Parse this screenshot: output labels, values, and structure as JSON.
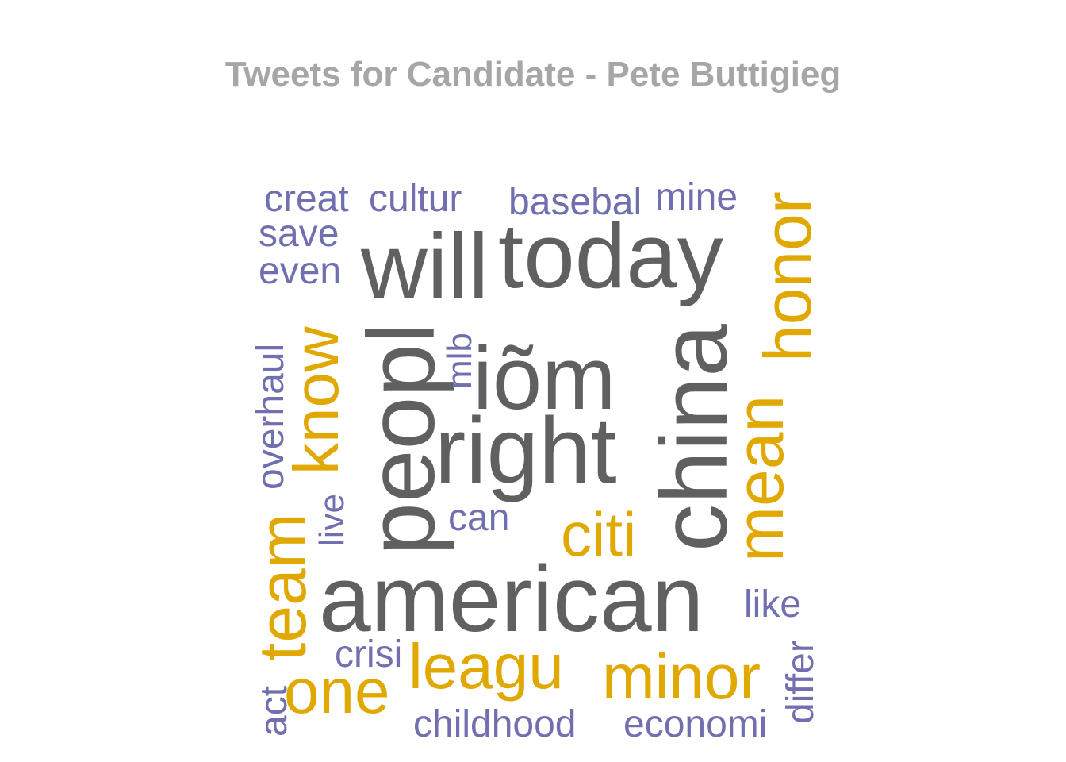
{
  "title": "Tweets for Candidate - Pete Buttigieg",
  "colors": {
    "high": "#606060",
    "mid": "#e0a800",
    "low": "#7070b0",
    "title": "#a6a6a6"
  },
  "chart_data": {
    "type": "wordcloud",
    "title": "Tweets for Candidate - Pete Buttigieg",
    "words": [
      {
        "word": "will",
        "group": "high",
        "weight": 120,
        "rotated": false
      },
      {
        "word": "today",
        "group": "high",
        "weight": 120,
        "rotated": false
      },
      {
        "word": "peopl",
        "group": "high",
        "weight": 120,
        "rotated": true
      },
      {
        "word": "iõm",
        "group": "high",
        "weight": 110,
        "rotated": false
      },
      {
        "word": "right",
        "group": "high",
        "weight": 120,
        "rotated": false
      },
      {
        "word": "china",
        "group": "high",
        "weight": 120,
        "rotated": true
      },
      {
        "word": "american",
        "group": "high",
        "weight": 120,
        "rotated": false
      },
      {
        "word": "honor",
        "group": "mid",
        "weight": 85,
        "rotated": true
      },
      {
        "word": "know",
        "group": "mid",
        "weight": 80,
        "rotated": true
      },
      {
        "word": "mean",
        "group": "mid",
        "weight": 85,
        "rotated": true
      },
      {
        "word": "team",
        "group": "mid",
        "weight": 85,
        "rotated": true
      },
      {
        "word": "citi",
        "group": "mid",
        "weight": 75,
        "rotated": false
      },
      {
        "word": "leagu",
        "group": "mid",
        "weight": 80,
        "rotated": false
      },
      {
        "word": "minor",
        "group": "mid",
        "weight": 80,
        "rotated": false
      },
      {
        "word": "one",
        "group": "mid",
        "weight": 80,
        "rotated": false
      },
      {
        "word": "creat",
        "group": "low",
        "weight": 50,
        "rotated": false
      },
      {
        "word": "cultur",
        "group": "low",
        "weight": 50,
        "rotated": false
      },
      {
        "word": "basebal",
        "group": "low",
        "weight": 50,
        "rotated": false
      },
      {
        "word": "mine",
        "group": "low",
        "weight": 50,
        "rotated": false
      },
      {
        "word": "save",
        "group": "low",
        "weight": 50,
        "rotated": false
      },
      {
        "word": "even",
        "group": "low",
        "weight": 50,
        "rotated": false
      },
      {
        "word": "mlb",
        "group": "low",
        "weight": 45,
        "rotated": true
      },
      {
        "word": "overhaul",
        "group": "low",
        "weight": 50,
        "rotated": true
      },
      {
        "word": "live",
        "group": "low",
        "weight": 45,
        "rotated": true
      },
      {
        "word": "can",
        "group": "low",
        "weight": 50,
        "rotated": false
      },
      {
        "word": "like",
        "group": "low",
        "weight": 50,
        "rotated": false
      },
      {
        "word": "crisi",
        "group": "low",
        "weight": 50,
        "rotated": false
      },
      {
        "word": "differ",
        "group": "low",
        "weight": 50,
        "rotated": true
      },
      {
        "word": "act",
        "group": "low",
        "weight": 50,
        "rotated": true
      },
      {
        "word": "childhood",
        "group": "low",
        "weight": 50,
        "rotated": false
      },
      {
        "word": "economi",
        "group": "low",
        "weight": 50,
        "rotated": false
      }
    ]
  }
}
